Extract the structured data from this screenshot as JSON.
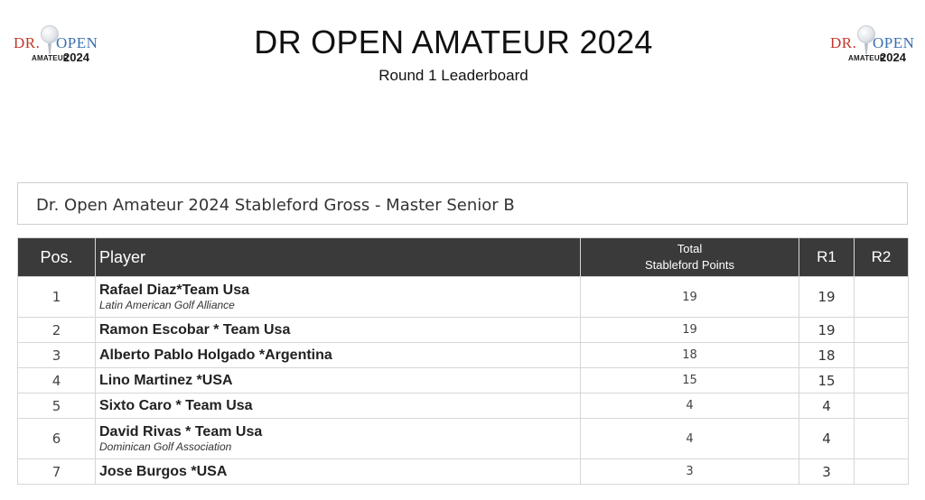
{
  "header": {
    "title": "DR OPEN AMATEUR 2024",
    "subtitle": "Round 1 Leaderboard",
    "logo": {
      "dr": "DR.",
      "open": "OPEN",
      "amateur": "AMATEUR",
      "year": "2024"
    }
  },
  "event": {
    "name": "Dr. Open Amateur 2024 Stableford Gross - Master Senior B"
  },
  "table": {
    "headers": {
      "pos": "Pos.",
      "player": "Player",
      "total_line1": "Total",
      "total_line2": "Stableford Points",
      "r1": "R1",
      "r2": "R2"
    },
    "rows": [
      {
        "pos": "1",
        "name": "Rafael Diaz*Team Usa",
        "club": "Latin American Golf Alliance",
        "total": "19",
        "r1": "19",
        "r2": ""
      },
      {
        "pos": "2",
        "name": "Ramon Escobar * Team Usa",
        "club": "",
        "total": "19",
        "r1": "19",
        "r2": ""
      },
      {
        "pos": "3",
        "name": "Alberto Pablo Holgado *Argentina",
        "club": "",
        "total": "18",
        "r1": "18",
        "r2": ""
      },
      {
        "pos": "4",
        "name": "Lino Martinez *USA",
        "club": "",
        "total": "15",
        "r1": "15",
        "r2": ""
      },
      {
        "pos": "5",
        "name": "Sixto Caro * Team Usa",
        "club": "",
        "total": "4",
        "r1": "4",
        "r2": ""
      },
      {
        "pos": "6",
        "name": "David Rivas * Team Usa",
        "club": "Dominican Golf Association",
        "total": "4",
        "r1": "4",
        "r2": ""
      },
      {
        "pos": "7",
        "name": "Jose Burgos *USA",
        "club": "",
        "total": "3",
        "r1": "3",
        "r2": ""
      }
    ]
  }
}
